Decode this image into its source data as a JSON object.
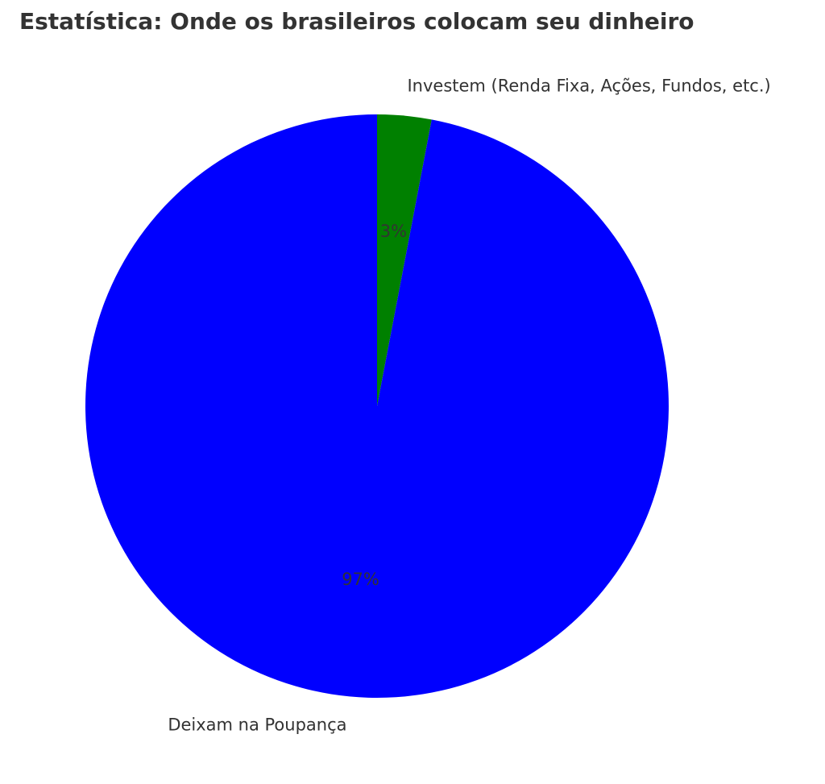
{
  "chart_data": {
    "type": "pie",
    "title": "Estatística: Onde os brasileiros colocam seu dinheiro",
    "categories": [
      "Investem (Renda Fixa, Ações, Fundos, etc.)",
      "Deixam na Poupança"
    ],
    "values": [
      3,
      97
    ],
    "value_labels": [
      "3%",
      "97%"
    ],
    "colors": [
      "#008000",
      "#0000ff"
    ]
  }
}
